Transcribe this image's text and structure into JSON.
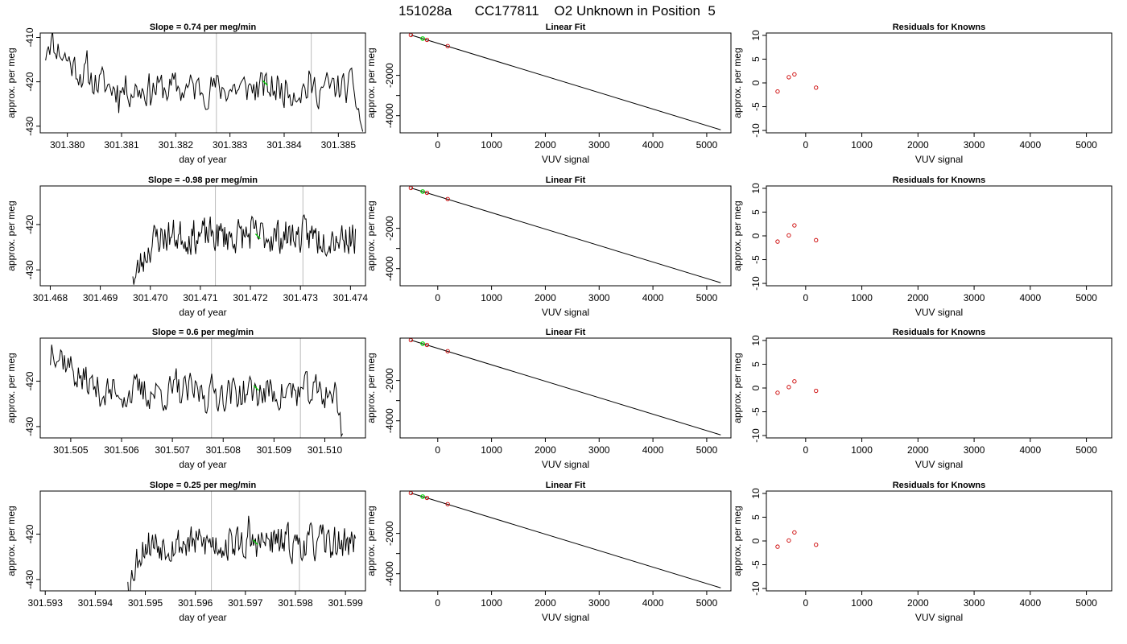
{
  "figure": {
    "title": "151028a      CC177811    O2 Unknown in Position  5",
    "colors": {
      "ink": "#000000",
      "unknown_point": "#00cc00",
      "known_point": "#cc0000",
      "window_line": "#bbbbbb"
    }
  },
  "chart_data": [
    {
      "type": "line",
      "title": "Slope =  0.74  per meg/min",
      "xlabel": "day of year",
      "ylabel": "approx. per meg",
      "xlim": [
        301.3795,
        301.3855
      ],
      "ylim": [
        -431.5,
        -409
      ],
      "xticks": [
        301.38,
        301.381,
        301.382,
        301.383,
        301.384,
        301.385
      ],
      "xtick_labels": [
        "301.380",
        "301.381",
        "301.382",
        "301.383",
        "301.384",
        "301.385"
      ],
      "yticks": [
        -430,
        -420,
        -410
      ],
      "ytick_labels": [
        "-430",
        "-420",
        "-410"
      ],
      "vlines": [
        301.38275,
        301.3845
      ],
      "series_start": 301.3796,
      "series_end": 301.38545,
      "series_level": -421.5,
      "series_start_level": -409,
      "series_start_len": 0.0014,
      "series_tail": [
        301.38532,
        -425,
        -431.5
      ],
      "series_seed": 11,
      "marker": {
        "x": 301.38365,
        "y": -420.3
      }
    },
    {
      "type": "scatter",
      "title": "Linear Fit",
      "xlabel": "VUV signal",
      "ylabel": "approx. per meg",
      "xlim": [
        -700,
        5450
      ],
      "ylim": [
        -4850,
        100
      ],
      "xticks": [
        0,
        1000,
        2000,
        3000,
        4000,
        5000
      ],
      "xtick_labels": [
        "0",
        "1000",
        "2000",
        "3000",
        "4000",
        "5000"
      ],
      "yticks": [
        -4000,
        -3000,
        -2000
      ],
      "ytick_labels": [
        "-4000",
        "",
        "-2000"
      ],
      "fit_line": {
        "x": [
          -500,
          5260
        ],
        "y": [
          0,
          -4700
        ]
      },
      "known_points": {
        "x": [
          -500,
          -200,
          185
        ],
        "y": [
          0,
          -240,
          -550
        ]
      },
      "unknown_points": {
        "x": [
          -280
        ],
        "y": [
          -175
        ]
      }
    },
    {
      "type": "scatter",
      "title": "Residuals for Knowns",
      "xlabel": "VUV signal",
      "ylabel": "approx. per meg",
      "xlim": [
        -700,
        5450
      ],
      "ylim": [
        -10.5,
        10.5
      ],
      "xticks": [
        0,
        1000,
        2000,
        3000,
        4000,
        5000
      ],
      "xtick_labels": [
        "0",
        "1000",
        "2000",
        "3000",
        "4000",
        "5000"
      ],
      "yticks": [
        -10,
        -5,
        0,
        5,
        10
      ],
      "ytick_labels": [
        "-10",
        "-5",
        "0",
        "5",
        "10"
      ],
      "points": {
        "x": [
          -500,
          -300,
          -200,
          185
        ],
        "y": [
          -1.8,
          1.2,
          1.8,
          -1.0
        ]
      }
    },
    {
      "type": "line",
      "title": "Slope =  -0.98  per meg/min",
      "xlabel": "day of year",
      "ylabel": "approx. per meg",
      "xlim": [
        301.4678,
        301.4743
      ],
      "ylim": [
        -433.5,
        -411.5
      ],
      "xticks": [
        301.468,
        301.469,
        301.47,
        301.471,
        301.472,
        301.473,
        301.474
      ],
      "xtick_labels": [
        "301.468",
        "301.469",
        "301.470",
        "301.471",
        "301.472",
        "301.473",
        "301.474"
      ],
      "yticks": [
        -430,
        -420
      ],
      "ytick_labels": [
        "-430",
        "-420"
      ],
      "vlines": [
        301.4713,
        301.47305
      ],
      "series_start": 301.46965,
      "series_end": 301.4741,
      "series_level": -422.5,
      "series_start_level": -433.5,
      "series_start_len": 0.0006,
      "series_tail": null,
      "series_seed": 23,
      "marker": {
        "x": 301.47215,
        "y": -422.6
      }
    },
    {
      "type": "scatter",
      "title": "Linear Fit",
      "xlabel": "VUV signal",
      "ylabel": "approx. per meg",
      "xlim": [
        -700,
        5450
      ],
      "ylim": [
        -4850,
        100
      ],
      "xticks": [
        0,
        1000,
        2000,
        3000,
        4000,
        5000
      ],
      "xtick_labels": [
        "0",
        "1000",
        "2000",
        "3000",
        "4000",
        "5000"
      ],
      "yticks": [
        -4000,
        -3000,
        -2000
      ],
      "ytick_labels": [
        "-4000",
        "",
        "-2000"
      ],
      "fit_line": {
        "x": [
          -500,
          5260
        ],
        "y": [
          0,
          -4700
        ]
      },
      "known_points": {
        "x": [
          -500,
          -200,
          185
        ],
        "y": [
          0,
          -240,
          -550
        ]
      },
      "unknown_points": {
        "x": [
          -280
        ],
        "y": [
          -175
        ]
      }
    },
    {
      "type": "scatter",
      "title": "Residuals for Knowns",
      "xlabel": "VUV signal",
      "ylabel": "approx. per meg",
      "xlim": [
        -700,
        5450
      ],
      "ylim": [
        -10.5,
        10.5
      ],
      "xticks": [
        0,
        1000,
        2000,
        3000,
        4000,
        5000
      ],
      "xtick_labels": [
        "0",
        "1000",
        "2000",
        "3000",
        "4000",
        "5000"
      ],
      "yticks": [
        -10,
        -5,
        0,
        5,
        10
      ],
      "ytick_labels": [
        "-10",
        "-5",
        "0",
        "5",
        "10"
      ],
      "points": {
        "x": [
          -500,
          -300,
          -200,
          185
        ],
        "y": [
          -1.2,
          0.1,
          2.2,
          -0.9
        ]
      }
    },
    {
      "type": "line",
      "title": "Slope =  0.6  per meg/min",
      "xlabel": "day of year",
      "ylabel": "approx. per meg",
      "xlim": [
        301.5044,
        301.5108
      ],
      "ylim": [
        -432.5,
        -410.5
      ],
      "xticks": [
        301.505,
        301.506,
        301.507,
        301.508,
        301.509,
        301.51
      ],
      "xtick_labels": [
        "301.505",
        "301.506",
        "301.507",
        "301.508",
        "301.509",
        "301.510"
      ],
      "yticks": [
        -430,
        -420
      ],
      "ytick_labels": [
        "-430",
        "-420"
      ],
      "vlines": [
        301.50777,
        301.50952
      ],
      "series_start": 301.5046,
      "series_end": 301.51035,
      "series_level": -422.5,
      "series_start_level": -410.5,
      "series_start_len": 0.0012,
      "series_tail": [
        301.51022,
        -425,
        -432.5
      ],
      "series_seed": 37,
      "marker": {
        "x": 301.50865,
        "y": -421.5
      }
    },
    {
      "type": "scatter",
      "title": "Linear Fit",
      "xlabel": "VUV signal",
      "ylabel": "approx. per meg",
      "xlim": [
        -700,
        5450
      ],
      "ylim": [
        -4850,
        100
      ],
      "xticks": [
        0,
        1000,
        2000,
        3000,
        4000,
        5000
      ],
      "xtick_labels": [
        "0",
        "1000",
        "2000",
        "3000",
        "4000",
        "5000"
      ],
      "yticks": [
        -4000,
        -3000,
        -2000
      ],
      "ytick_labels": [
        "-4000",
        "",
        "-2000"
      ],
      "fit_line": {
        "x": [
          -500,
          5260
        ],
        "y": [
          0,
          -4700
        ]
      },
      "known_points": {
        "x": [
          -500,
          -200,
          185
        ],
        "y": [
          0,
          -240,
          -550
        ]
      },
      "unknown_points": {
        "x": [
          -280
        ],
        "y": [
          -175
        ]
      }
    },
    {
      "type": "scatter",
      "title": "Residuals for Knowns",
      "xlabel": "VUV signal",
      "ylabel": "approx. per meg",
      "xlim": [
        -700,
        5450
      ],
      "ylim": [
        -10.5,
        10.5
      ],
      "xticks": [
        0,
        1000,
        2000,
        3000,
        4000,
        5000
      ],
      "xtick_labels": [
        "0",
        "1000",
        "2000",
        "3000",
        "4000",
        "5000"
      ],
      "yticks": [
        -10,
        -5,
        0,
        5,
        10
      ],
      "ytick_labels": [
        "-10",
        "-5",
        "0",
        "5",
        "10"
      ],
      "points": {
        "x": [
          -500,
          -300,
          -200,
          185
        ],
        "y": [
          -1.0,
          0.2,
          1.4,
          -0.6
        ]
      }
    },
    {
      "type": "line",
      "title": "Slope =  0.25  per meg/min",
      "xlabel": "day of year",
      "ylabel": "approx. per meg",
      "xlim": [
        301.5929,
        301.5994
      ],
      "ylim": [
        -432.5,
        -410.5
      ],
      "xticks": [
        301.593,
        301.594,
        301.595,
        301.596,
        301.597,
        301.598,
        301.599
      ],
      "xtick_labels": [
        "301.593",
        "301.594",
        "301.595",
        "301.596",
        "301.597",
        "301.598",
        "301.599"
      ],
      "yticks": [
        -430,
        -420
      ],
      "ytick_labels": [
        "-430",
        "-420"
      ],
      "vlines": [
        301.59632,
        301.59808
      ],
      "series_start": 301.59465,
      "series_end": 301.5992,
      "series_level": -422.0,
      "series_start_level": -432.5,
      "series_start_len": 0.0004,
      "series_tail": null,
      "series_seed": 53,
      "marker": {
        "x": 301.5972,
        "y": -421.8
      }
    },
    {
      "type": "scatter",
      "title": "Linear Fit",
      "xlabel": "VUV signal",
      "ylabel": "approx. per meg",
      "xlim": [
        -700,
        5450
      ],
      "ylim": [
        -4850,
        100
      ],
      "xticks": [
        0,
        1000,
        2000,
        3000,
        4000,
        5000
      ],
      "xtick_labels": [
        "0",
        "1000",
        "2000",
        "3000",
        "4000",
        "5000"
      ],
      "yticks": [
        -4000,
        -3000,
        -2000
      ],
      "ytick_labels": [
        "-4000",
        "",
        "-2000"
      ],
      "fit_line": {
        "x": [
          -500,
          5260
        ],
        "y": [
          0,
          -4700
        ]
      },
      "known_points": {
        "x": [
          -500,
          -200,
          185
        ],
        "y": [
          0,
          -240,
          -550
        ]
      },
      "unknown_points": {
        "x": [
          -280
        ],
        "y": [
          -175
        ]
      }
    },
    {
      "type": "scatter",
      "title": "Residuals for Knowns",
      "xlabel": "VUV signal",
      "ylabel": "approx. per meg",
      "xlim": [
        -700,
        5450
      ],
      "ylim": [
        -10.5,
        10.5
      ],
      "xticks": [
        0,
        1000,
        2000,
        3000,
        4000,
        5000
      ],
      "xtick_labels": [
        "0",
        "1000",
        "2000",
        "3000",
        "4000",
        "5000"
      ],
      "yticks": [
        -10,
        -5,
        0,
        5,
        10
      ],
      "ytick_labels": [
        "-10",
        "-5",
        "0",
        "5",
        "10"
      ],
      "points": {
        "x": [
          -500,
          -300,
          -200,
          185
        ],
        "y": [
          -1.2,
          0.1,
          1.8,
          -0.8
        ]
      }
    }
  ]
}
